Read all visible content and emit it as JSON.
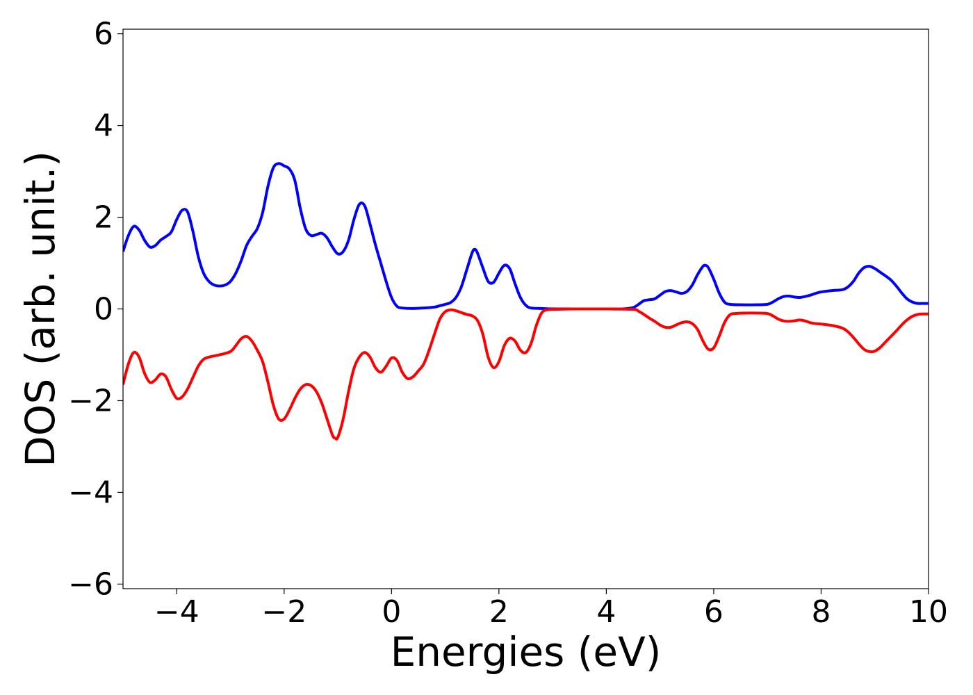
{
  "chart_data": {
    "type": "line",
    "title": "",
    "xlabel": "Energies (eV)",
    "ylabel": "DOS (arb. unit.)",
    "xlim": [
      -5,
      10
    ],
    "ylim": [
      -6.1,
      6.1
    ],
    "xticks": [
      -4,
      -2,
      0,
      2,
      4,
      6,
      8,
      10
    ],
    "yticks": [
      -6,
      -4,
      -2,
      0,
      2,
      4,
      6
    ],
    "xtick_labels": [
      "−4",
      "−2",
      "0",
      "2",
      "4",
      "6",
      "8",
      "10"
    ],
    "ytick_labels": [
      "−6",
      "−4",
      "−2",
      "0",
      "2",
      "4",
      "6"
    ],
    "grid": false,
    "legend": "none",
    "series": [
      {
        "color": "#0000ff",
        "points": [
          [
            -5.0,
            1.25
          ],
          [
            -4.9,
            1.6
          ],
          [
            -4.8,
            1.8
          ],
          [
            -4.7,
            1.72
          ],
          [
            -4.6,
            1.5
          ],
          [
            -4.5,
            1.35
          ],
          [
            -4.4,
            1.38
          ],
          [
            -4.3,
            1.5
          ],
          [
            -4.2,
            1.58
          ],
          [
            -4.1,
            1.68
          ],
          [
            -4.0,
            1.95
          ],
          [
            -3.9,
            2.15
          ],
          [
            -3.8,
            2.12
          ],
          [
            -3.7,
            1.7
          ],
          [
            -3.6,
            1.15
          ],
          [
            -3.5,
            0.78
          ],
          [
            -3.4,
            0.6
          ],
          [
            -3.3,
            0.52
          ],
          [
            -3.2,
            0.5
          ],
          [
            -3.1,
            0.52
          ],
          [
            -3.0,
            0.6
          ],
          [
            -2.9,
            0.78
          ],
          [
            -2.8,
            1.05
          ],
          [
            -2.7,
            1.38
          ],
          [
            -2.6,
            1.58
          ],
          [
            -2.5,
            1.75
          ],
          [
            -2.4,
            2.1
          ],
          [
            -2.3,
            2.68
          ],
          [
            -2.2,
            3.08
          ],
          [
            -2.1,
            3.17
          ],
          [
            -2.0,
            3.12
          ],
          [
            -1.9,
            3.05
          ],
          [
            -1.8,
            2.8
          ],
          [
            -1.7,
            2.2
          ],
          [
            -1.6,
            1.75
          ],
          [
            -1.5,
            1.6
          ],
          [
            -1.4,
            1.62
          ],
          [
            -1.3,
            1.65
          ],
          [
            -1.2,
            1.55
          ],
          [
            -1.1,
            1.35
          ],
          [
            -1.0,
            1.2
          ],
          [
            -0.9,
            1.25
          ],
          [
            -0.8,
            1.5
          ],
          [
            -0.7,
            1.95
          ],
          [
            -0.6,
            2.28
          ],
          [
            -0.5,
            2.25
          ],
          [
            -0.4,
            1.85
          ],
          [
            -0.3,
            1.4
          ],
          [
            -0.2,
            1.0
          ],
          [
            -0.1,
            0.6
          ],
          [
            0.0,
            0.25
          ],
          [
            0.1,
            0.06
          ],
          [
            0.2,
            0.02
          ],
          [
            0.4,
            0.01
          ],
          [
            0.6,
            0.02
          ],
          [
            0.8,
            0.04
          ],
          [
            0.9,
            0.07
          ],
          [
            1.0,
            0.1
          ],
          [
            1.1,
            0.14
          ],
          [
            1.2,
            0.25
          ],
          [
            1.3,
            0.48
          ],
          [
            1.4,
            0.85
          ],
          [
            1.5,
            1.22
          ],
          [
            1.55,
            1.3
          ],
          [
            1.6,
            1.22
          ],
          [
            1.7,
            0.9
          ],
          [
            1.8,
            0.6
          ],
          [
            1.9,
            0.58
          ],
          [
            2.0,
            0.78
          ],
          [
            2.1,
            0.95
          ],
          [
            2.2,
            0.88
          ],
          [
            2.3,
            0.55
          ],
          [
            2.4,
            0.25
          ],
          [
            2.5,
            0.08
          ],
          [
            2.6,
            0.02
          ],
          [
            2.8,
            0.01
          ],
          [
            3.0,
            0.0
          ],
          [
            3.5,
            0.0
          ],
          [
            4.0,
            0.0
          ],
          [
            4.3,
            0.0
          ],
          [
            4.5,
            0.03
          ],
          [
            4.6,
            0.1
          ],
          [
            4.7,
            0.18
          ],
          [
            4.8,
            0.2
          ],
          [
            4.9,
            0.22
          ],
          [
            5.0,
            0.3
          ],
          [
            5.1,
            0.38
          ],
          [
            5.2,
            0.4
          ],
          [
            5.3,
            0.37
          ],
          [
            5.4,
            0.34
          ],
          [
            5.5,
            0.38
          ],
          [
            5.6,
            0.52
          ],
          [
            5.7,
            0.75
          ],
          [
            5.8,
            0.93
          ],
          [
            5.85,
            0.95
          ],
          [
            5.9,
            0.9
          ],
          [
            6.0,
            0.65
          ],
          [
            6.1,
            0.35
          ],
          [
            6.2,
            0.15
          ],
          [
            6.3,
            0.1
          ],
          [
            6.5,
            0.09
          ],
          [
            6.8,
            0.09
          ],
          [
            7.0,
            0.1
          ],
          [
            7.1,
            0.15
          ],
          [
            7.2,
            0.22
          ],
          [
            7.3,
            0.27
          ],
          [
            7.4,
            0.28
          ],
          [
            7.5,
            0.26
          ],
          [
            7.6,
            0.25
          ],
          [
            7.7,
            0.27
          ],
          [
            7.8,
            0.3
          ],
          [
            7.9,
            0.34
          ],
          [
            8.0,
            0.37
          ],
          [
            8.2,
            0.4
          ],
          [
            8.4,
            0.42
          ],
          [
            8.5,
            0.48
          ],
          [
            8.6,
            0.6
          ],
          [
            8.7,
            0.78
          ],
          [
            8.8,
            0.9
          ],
          [
            8.9,
            0.93
          ],
          [
            9.0,
            0.88
          ],
          [
            9.1,
            0.8
          ],
          [
            9.2,
            0.72
          ],
          [
            9.3,
            0.63
          ],
          [
            9.4,
            0.5
          ],
          [
            9.5,
            0.35
          ],
          [
            9.6,
            0.22
          ],
          [
            9.7,
            0.15
          ],
          [
            9.8,
            0.12
          ],
          [
            9.9,
            0.12
          ],
          [
            10.0,
            0.12
          ]
        ]
      },
      {
        "color": "#ff0000",
        "points": [
          [
            -5.0,
            -1.65
          ],
          [
            -4.9,
            -1.2
          ],
          [
            -4.8,
            -0.95
          ],
          [
            -4.7,
            -1.05
          ],
          [
            -4.6,
            -1.4
          ],
          [
            -4.5,
            -1.6
          ],
          [
            -4.4,
            -1.55
          ],
          [
            -4.3,
            -1.42
          ],
          [
            -4.2,
            -1.48
          ],
          [
            -4.1,
            -1.75
          ],
          [
            -4.0,
            -1.95
          ],
          [
            -3.9,
            -1.92
          ],
          [
            -3.8,
            -1.75
          ],
          [
            -3.7,
            -1.5
          ],
          [
            -3.6,
            -1.25
          ],
          [
            -3.5,
            -1.1
          ],
          [
            -3.4,
            -1.05
          ],
          [
            -3.2,
            -1.0
          ],
          [
            -3.0,
            -0.93
          ],
          [
            -2.9,
            -0.8
          ],
          [
            -2.8,
            -0.65
          ],
          [
            -2.7,
            -0.6
          ],
          [
            -2.6,
            -0.7
          ],
          [
            -2.5,
            -0.9
          ],
          [
            -2.4,
            -1.15
          ],
          [
            -2.3,
            -1.6
          ],
          [
            -2.2,
            -2.1
          ],
          [
            -2.1,
            -2.4
          ],
          [
            -2.0,
            -2.4
          ],
          [
            -1.9,
            -2.2
          ],
          [
            -1.8,
            -1.95
          ],
          [
            -1.7,
            -1.75
          ],
          [
            -1.6,
            -1.65
          ],
          [
            -1.5,
            -1.67
          ],
          [
            -1.4,
            -1.8
          ],
          [
            -1.3,
            -2.05
          ],
          [
            -1.2,
            -2.4
          ],
          [
            -1.1,
            -2.75
          ],
          [
            -1.05,
            -2.82
          ],
          [
            -1.0,
            -2.8
          ],
          [
            -0.9,
            -2.4
          ],
          [
            -0.8,
            -1.8
          ],
          [
            -0.7,
            -1.3
          ],
          [
            -0.6,
            -1.05
          ],
          [
            -0.5,
            -0.95
          ],
          [
            -0.4,
            -1.05
          ],
          [
            -0.3,
            -1.28
          ],
          [
            -0.2,
            -1.38
          ],
          [
            -0.1,
            -1.25
          ],
          [
            0.0,
            -1.07
          ],
          [
            0.1,
            -1.12
          ],
          [
            0.2,
            -1.38
          ],
          [
            0.3,
            -1.52
          ],
          [
            0.4,
            -1.48
          ],
          [
            0.5,
            -1.35
          ],
          [
            0.6,
            -1.2
          ],
          [
            0.7,
            -0.9
          ],
          [
            0.8,
            -0.55
          ],
          [
            0.9,
            -0.22
          ],
          [
            1.0,
            -0.06
          ],
          [
            1.1,
            -0.02
          ],
          [
            1.2,
            -0.04
          ],
          [
            1.3,
            -0.08
          ],
          [
            1.4,
            -0.12
          ],
          [
            1.5,
            -0.15
          ],
          [
            1.6,
            -0.25
          ],
          [
            1.7,
            -0.55
          ],
          [
            1.8,
            -1.05
          ],
          [
            1.9,
            -1.28
          ],
          [
            2.0,
            -1.15
          ],
          [
            2.1,
            -0.8
          ],
          [
            2.2,
            -0.64
          ],
          [
            2.3,
            -0.7
          ],
          [
            2.4,
            -0.9
          ],
          [
            2.5,
            -0.95
          ],
          [
            2.6,
            -0.75
          ],
          [
            2.7,
            -0.35
          ],
          [
            2.8,
            -0.08
          ],
          [
            2.9,
            -0.02
          ],
          [
            3.0,
            -0.01
          ],
          [
            3.5,
            0.0
          ],
          [
            4.0,
            0.0
          ],
          [
            4.5,
            -0.01
          ],
          [
            4.6,
            -0.05
          ],
          [
            4.7,
            -0.12
          ],
          [
            4.8,
            -0.2
          ],
          [
            4.9,
            -0.27
          ],
          [
            5.0,
            -0.35
          ],
          [
            5.1,
            -0.4
          ],
          [
            5.2,
            -0.4
          ],
          [
            5.3,
            -0.35
          ],
          [
            5.4,
            -0.3
          ],
          [
            5.5,
            -0.28
          ],
          [
            5.6,
            -0.32
          ],
          [
            5.7,
            -0.45
          ],
          [
            5.8,
            -0.7
          ],
          [
            5.9,
            -0.88
          ],
          [
            6.0,
            -0.85
          ],
          [
            6.1,
            -0.6
          ],
          [
            6.2,
            -0.3
          ],
          [
            6.3,
            -0.13
          ],
          [
            6.4,
            -0.1
          ],
          [
            6.6,
            -0.09
          ],
          [
            6.8,
            -0.09
          ],
          [
            7.0,
            -0.1
          ],
          [
            7.1,
            -0.15
          ],
          [
            7.2,
            -0.22
          ],
          [
            7.3,
            -0.26
          ],
          [
            7.4,
            -0.27
          ],
          [
            7.5,
            -0.26
          ],
          [
            7.6,
            -0.24
          ],
          [
            7.7,
            -0.26
          ],
          [
            7.8,
            -0.3
          ],
          [
            7.9,
            -0.32
          ],
          [
            8.0,
            -0.33
          ],
          [
            8.2,
            -0.36
          ],
          [
            8.4,
            -0.42
          ],
          [
            8.5,
            -0.5
          ],
          [
            8.6,
            -0.62
          ],
          [
            8.7,
            -0.76
          ],
          [
            8.8,
            -0.88
          ],
          [
            8.9,
            -0.93
          ],
          [
            9.0,
            -0.92
          ],
          [
            9.1,
            -0.84
          ],
          [
            9.2,
            -0.72
          ],
          [
            9.3,
            -0.6
          ],
          [
            9.4,
            -0.48
          ],
          [
            9.5,
            -0.35
          ],
          [
            9.6,
            -0.24
          ],
          [
            9.7,
            -0.16
          ],
          [
            9.8,
            -0.12
          ],
          [
            9.9,
            -0.11
          ],
          [
            10.0,
            -0.11
          ]
        ]
      }
    ]
  }
}
